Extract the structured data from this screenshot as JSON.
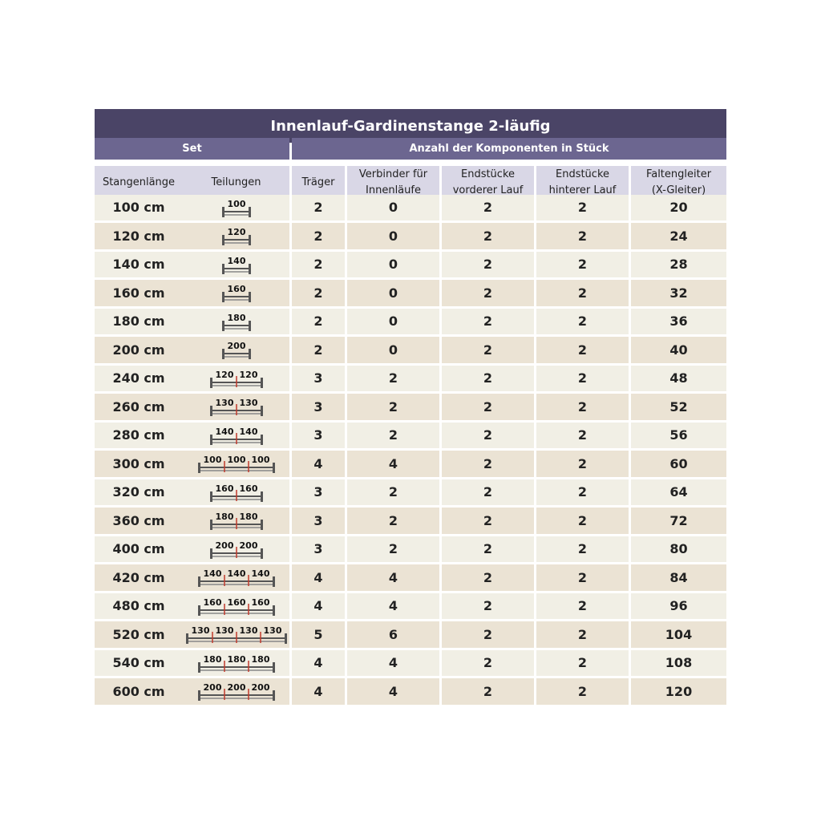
{
  "header": {
    "title": "Innenlauf-Gardinenstange 2-läufig",
    "group_set": "Set",
    "group_components": "Anzahl der Komponenten in Stück"
  },
  "table": {
    "columns": [
      [
        "Stangenlänge"
      ],
      [
        "Teilungen"
      ],
      [
        "Träger"
      ],
      [
        "Verbinder für",
        "Innenläufe"
      ],
      [
        "Endstücke",
        "vorderer Lauf"
      ],
      [
        "Endstücke",
        "hinterer Lauf"
      ],
      [
        "Faltengleiter",
        "(X-Gleiter)"
      ]
    ],
    "rows": [
      {
        "length": "100 cm",
        "segments": [
          100
        ],
        "values": [
          2,
          0,
          2,
          2,
          20
        ]
      },
      {
        "length": "120 cm",
        "segments": [
          120
        ],
        "values": [
          2,
          0,
          2,
          2,
          24
        ]
      },
      {
        "length": "140 cm",
        "segments": [
          140
        ],
        "values": [
          2,
          0,
          2,
          2,
          28
        ]
      },
      {
        "length": "160 cm",
        "segments": [
          160
        ],
        "values": [
          2,
          0,
          2,
          2,
          32
        ]
      },
      {
        "length": "180 cm",
        "segments": [
          180
        ],
        "values": [
          2,
          0,
          2,
          2,
          36
        ]
      },
      {
        "length": "200 cm",
        "segments": [
          200
        ],
        "values": [
          2,
          0,
          2,
          2,
          40
        ]
      },
      {
        "length": "240 cm",
        "segments": [
          120,
          120
        ],
        "values": [
          3,
          2,
          2,
          2,
          48
        ]
      },
      {
        "length": "260 cm",
        "segments": [
          130,
          130
        ],
        "values": [
          3,
          2,
          2,
          2,
          52
        ]
      },
      {
        "length": "280 cm",
        "segments": [
          140,
          140
        ],
        "values": [
          3,
          2,
          2,
          2,
          56
        ]
      },
      {
        "length": "300 cm",
        "segments": [
          100,
          100,
          100
        ],
        "values": [
          4,
          4,
          2,
          2,
          60
        ]
      },
      {
        "length": "320 cm",
        "segments": [
          160,
          160
        ],
        "values": [
          3,
          2,
          2,
          2,
          64
        ]
      },
      {
        "length": "360 cm",
        "segments": [
          180,
          180
        ],
        "values": [
          3,
          2,
          2,
          2,
          72
        ]
      },
      {
        "length": "400 cm",
        "segments": [
          200,
          200
        ],
        "values": [
          3,
          2,
          2,
          2,
          80
        ]
      },
      {
        "length": "420 cm",
        "segments": [
          140,
          140,
          140
        ],
        "values": [
          4,
          4,
          2,
          2,
          84
        ]
      },
      {
        "length": "480 cm",
        "segments": [
          160,
          160,
          160
        ],
        "values": [
          4,
          4,
          2,
          2,
          96
        ]
      },
      {
        "length": "520 cm",
        "segments": [
          130,
          130,
          130,
          130
        ],
        "values": [
          5,
          6,
          2,
          2,
          104
        ]
      },
      {
        "length": "540 cm",
        "segments": [
          180,
          180,
          180
        ],
        "values": [
          4,
          4,
          2,
          2,
          108
        ]
      },
      {
        "length": "600 cm",
        "segments": [
          200,
          200,
          200
        ],
        "values": [
          4,
          4,
          2,
          2,
          120
        ]
      }
    ]
  }
}
